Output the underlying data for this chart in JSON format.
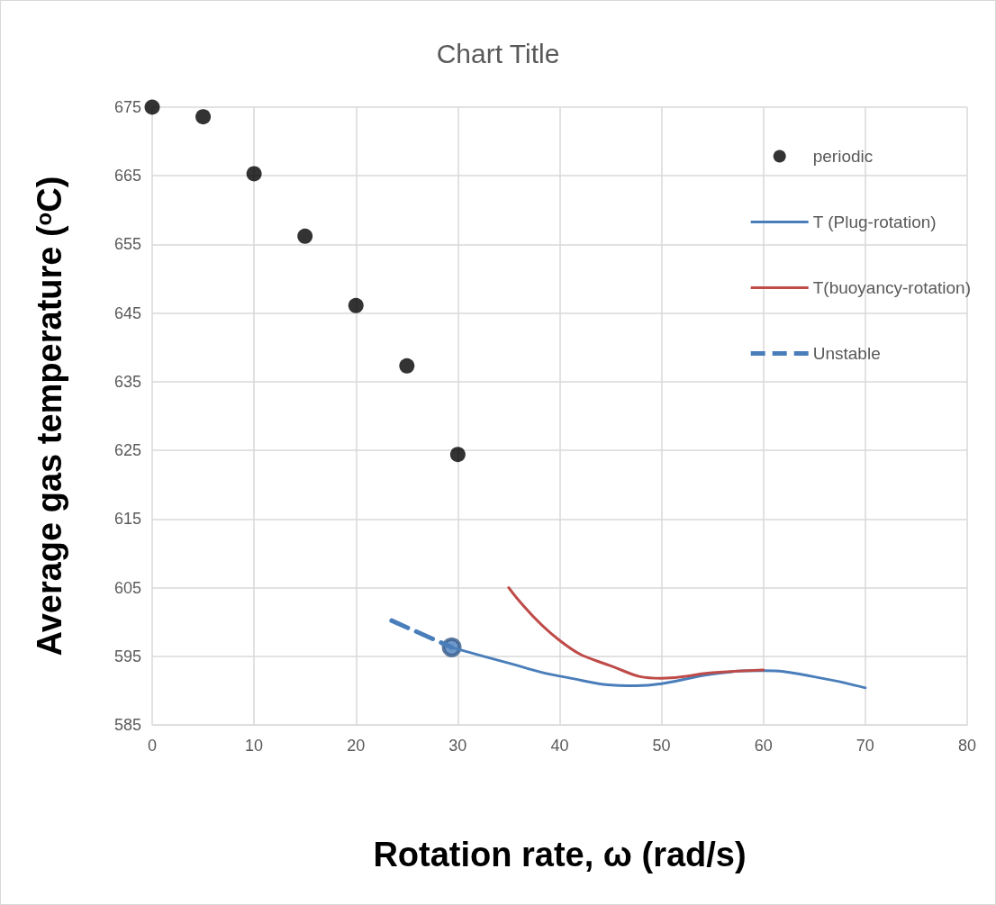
{
  "chart_data": {
    "type": "scatter",
    "title": "Chart Title",
    "xlabel": "Rotation rate, ω (rad/s)",
    "ylabel": "Average gas temperature ($^{o}$C)",
    "xlim": [
      0,
      80
    ],
    "xticks": [
      0,
      10,
      20,
      30,
      40,
      50,
      60,
      70,
      80
    ],
    "ylim": [
      585,
      675
    ],
    "yticks": [
      585,
      595,
      605,
      615,
      625,
      635,
      645,
      655,
      665,
      675
    ],
    "grid": true,
    "legend": "top right",
    "series": [
      {
        "name": "periodic",
        "marker": "circle",
        "color": "#000000",
        "x": [
          0,
          5,
          10,
          15,
          20,
          25,
          30
        ],
        "values": [
          675,
          673.6,
          665.3,
          656.2,
          646.1,
          637.3,
          624.4
        ]
      },
      {
        "name": "T (Plug-rotation)",
        "type": "line",
        "marker": "none",
        "line_style": "solid",
        "color": "#4a7ebb",
        "x": [
          29.4,
          35,
          40,
          47.5,
          50,
          55,
          60,
          65,
          70
        ],
        "values": [
          596.3,
          594,
          592.1,
          590.7,
          591.0,
          592.4,
          592.9,
          592.0,
          590.4
        ]
      },
      {
        "name": "T(buoyancy-rotation)",
        "type": "line",
        "marker": "none",
        "line_style": "solid",
        "color": "#be4b48",
        "x": [
          35,
          40,
          45,
          50,
          55,
          60
        ],
        "values": [
          605.0,
          597.3,
          593.6,
          591.8,
          592.6,
          593.0
        ]
      },
      {
        "name": "Unstable",
        "type": "line",
        "marker": "none",
        "line_style": "dashed",
        "color": "#4a7ebb",
        "x": [
          23.5,
          29.4
        ],
        "values": [
          600.2,
          596.3
        ]
      },
      {
        "marker": "circle",
        "color": "#385d8a",
        "x": [
          29.4
        ],
        "values": [
          596.3
        ]
      }
    ]
  }
}
